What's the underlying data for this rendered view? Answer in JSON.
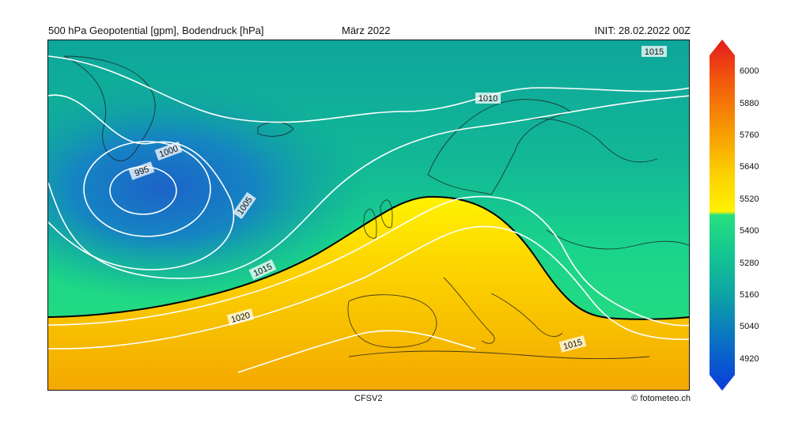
{
  "header": {
    "title_left": "500 hPa Geopotential [gpm], Bodendruck [hPa]",
    "title_center": "März 2022",
    "title_right": "INIT: 28.02.2022 00Z"
  },
  "footer": {
    "model": "CFSV2",
    "credit": "© fotometeo.ch"
  },
  "colorbar": {
    "ticks": [
      "6000",
      "5880",
      "5760",
      "5640",
      "5520",
      "5400",
      "5280",
      "5160",
      "5040",
      "4920"
    ],
    "min": 4860,
    "max": 6060
  },
  "isobar_labels": [
    "995",
    "1000",
    "1005",
    "1010",
    "1015",
    "1015",
    "1015",
    "1020"
  ],
  "colors": {
    "low": "#1f6fd0",
    "mid": "#13c98a",
    "boundary": "#ffef00",
    "high": "#f5a600",
    "isoline": "#ffffff",
    "contour_5520": "#000000"
  }
}
